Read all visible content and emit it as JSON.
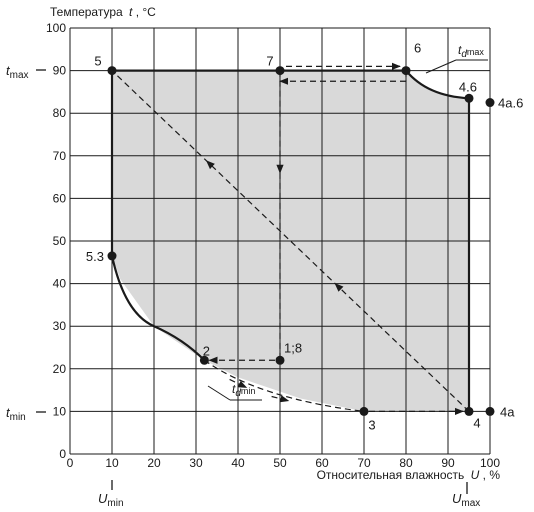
{
  "chart_data": {
    "type": "scatter",
    "y_title_prefix": "Температура",
    "y_title_var": "t",
    "y_title_unit": ", °С",
    "x_title_prefix": "Относительная влажность",
    "x_title_var": "U",
    "x_title_unit": ", %",
    "xlim": [
      0,
      100
    ],
    "ylim": [
      0,
      100
    ],
    "grid": true,
    "x_ticks": [
      "0",
      "10",
      "20",
      "30",
      "40",
      "50",
      "60",
      "70",
      "80",
      "90",
      "100"
    ],
    "y_ticks": [
      "0",
      "10",
      "20",
      "30",
      "40",
      "50",
      "60",
      "70",
      "80",
      "90",
      "100"
    ],
    "side_labels": {
      "t_max": {
        "main": "t",
        "sub": "max",
        "value": 90
      },
      "t_min": {
        "main": "t",
        "sub": "min",
        "value": 10
      },
      "U_min": {
        "main": "U",
        "sub": "min",
        "value": 10
      },
      "U_max": {
        "main": "U",
        "sub": "max",
        "value": 95
      }
    },
    "region_boundary": [
      [
        10,
        90
      ],
      [
        80,
        90
      ],
      [
        85,
        86
      ],
      [
        90,
        84
      ],
      [
        95,
        83.5
      ],
      [
        95,
        10
      ],
      [
        70,
        10
      ],
      [
        55,
        13
      ],
      [
        40,
        18
      ],
      [
        32,
        22
      ],
      [
        20,
        30
      ],
      [
        12,
        41
      ],
      [
        10,
        46.5
      ],
      [
        10,
        90
      ]
    ],
    "points": [
      {
        "id": "p5",
        "label": "5",
        "x": 10,
        "y": 90
      },
      {
        "id": "p7",
        "label": "7",
        "x": 50,
        "y": 90
      },
      {
        "id": "p6",
        "label": "6",
        "x": 80,
        "y": 90
      },
      {
        "id": "p46",
        "label": "4.6",
        "x": 95,
        "y": 83.5
      },
      {
        "id": "p4a6",
        "label": "4a.6",
        "x": 100,
        "y": 82.5
      },
      {
        "id": "p53",
        "label": "5.3",
        "x": 10,
        "y": 46.5
      },
      {
        "id": "p2",
        "label": "2",
        "x": 32,
        "y": 22
      },
      {
        "id": "p18",
        "label": "1;8",
        "x": 50,
        "y": 22
      },
      {
        "id": "p3",
        "label": "3",
        "x": 70,
        "y": 10
      },
      {
        "id": "p4",
        "label": "4",
        "x": 95,
        "y": 10
      },
      {
        "id": "p4a",
        "label": "4a",
        "x": 100,
        "y": 10
      }
    ],
    "curve_labels": {
      "td_max": {
        "main": "t",
        "sub": "d",
        "subsub": "max"
      },
      "td_min": {
        "main": "t",
        "sub": "d",
        "subsub": "min"
      }
    },
    "paths": [
      {
        "name": "7-6",
        "x": [
          50,
          80
        ],
        "y": [
          91,
          91
        ]
      },
      {
        "name": "6-7",
        "x": [
          80,
          50
        ],
        "y": [
          87.5,
          87.5
        ]
      },
      {
        "name": "7-down",
        "x": [
          50,
          50
        ],
        "y": [
          90,
          22
        ]
      },
      {
        "name": "1;8-2",
        "x": [
          50,
          32
        ],
        "y": [
          22,
          22
        ]
      },
      {
        "name": "2-3",
        "x": [
          32,
          70
        ],
        "y": [
          22,
          10
        ]
      },
      {
        "name": "3-4",
        "x": [
          70,
          95
        ],
        "y": [
          10,
          10
        ]
      },
      {
        "name": "4-5",
        "x": [
          95,
          10
        ],
        "y": [
          10,
          90
        ]
      }
    ]
  }
}
